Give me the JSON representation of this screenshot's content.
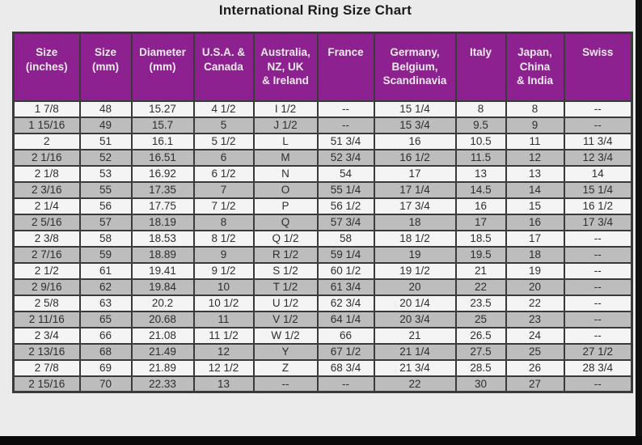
{
  "title": "International Ring Size Chart",
  "chart_data": {
    "type": "table",
    "title": "International Ring Size Chart",
    "columns": [
      "Size\n(inches)",
      "Size\n(mm)",
      "Diameter\n(mm)",
      "U.S.A. &\nCanada",
      "Australia,\nNZ, UK\n& Ireland",
      "France",
      "Germany,\nBelgium,\nScandinavia",
      "Italy",
      "Japan,\nChina\n& India",
      "Swiss"
    ],
    "rows": [
      [
        "1 7/8",
        "48",
        "15.27",
        "4 1/2",
        "I 1/2",
        "--",
        "15 1/4",
        "8",
        "8",
        "--"
      ],
      [
        "1 15/16",
        "49",
        "15.7",
        "5",
        "J 1/2",
        "--",
        "15 3/4",
        "9.5",
        "9",
        "--"
      ],
      [
        "2",
        "51",
        "16.1",
        "5 1/2",
        "L",
        "51 3/4",
        "16",
        "10.5",
        "11",
        "11 3/4"
      ],
      [
        "2 1/16",
        "52",
        "16.51",
        "6",
        "M",
        "52 3/4",
        "16 1/2",
        "11.5",
        "12",
        "12 3/4"
      ],
      [
        "2 1/8",
        "53",
        "16.92",
        "6 1/2",
        "N",
        "54",
        "17",
        "13",
        "13",
        "14"
      ],
      [
        "2 3/16",
        "55",
        "17.35",
        "7",
        "O",
        "55 1/4",
        "17 1/4",
        "14.5",
        "14",
        "15 1/4"
      ],
      [
        "2 1/4",
        "56",
        "17.75",
        "7 1/2",
        "P",
        "56 1/2",
        "17 3/4",
        "16",
        "15",
        "16 1/2"
      ],
      [
        "2 5/16",
        "57",
        "18.19",
        "8",
        "Q",
        "57 3/4",
        "18",
        "17",
        "16",
        "17 3/4"
      ],
      [
        "2 3/8",
        "58",
        "18.53",
        "8 1/2",
        "Q 1/2",
        "58",
        "18 1/2",
        "18.5",
        "17",
        "--"
      ],
      [
        "2 7/16",
        "59",
        "18.89",
        "9",
        "R 1/2",
        "59 1/4",
        "19",
        "19.5",
        "18",
        "--"
      ],
      [
        "2 1/2",
        "61",
        "19.41",
        "9 1/2",
        "S 1/2",
        "60 1/2",
        "19 1/2",
        "21",
        "19",
        "--"
      ],
      [
        "2 9/16",
        "62",
        "19.84",
        "10",
        "T 1/2",
        "61 3/4",
        "20",
        "22",
        "20",
        "--"
      ],
      [
        "2 5/8",
        "63",
        "20.2",
        "10 1/2",
        "U 1/2",
        "62 3/4",
        "20 1/4",
        "23.5",
        "22",
        "--"
      ],
      [
        "2 11/16",
        "65",
        "20.68",
        "11",
        "V 1/2",
        "64 1/4",
        "20 3/4",
        "25",
        "23",
        "--"
      ],
      [
        "2 3/4",
        "66",
        "21.08",
        "11 1/2",
        "W 1/2",
        "66",
        "21",
        "26.5",
        "24",
        "--"
      ],
      [
        "2 13/16",
        "68",
        "21.49",
        "12",
        "Y",
        "67 1/2",
        "21 1/4",
        "27.5",
        "25",
        "27 1/2"
      ],
      [
        "2 7/8",
        "69",
        "21.89",
        "12 1/2",
        "Z",
        "68 3/4",
        "21 3/4",
        "28.5",
        "26",
        "28 3/4"
      ],
      [
        "2 15/16",
        "70",
        "22.33",
        "13",
        "--",
        "--",
        "22",
        "30",
        "27",
        "--"
      ]
    ]
  },
  "colors": {
    "header_bg": "#8e2190",
    "header_text": "#f3eaf3",
    "row_plain": "#f4f4f4",
    "row_shaded": "#bdbdbd",
    "border": "#3a3a3a",
    "page_bg": "#ebebeb",
    "frame": "#111111"
  }
}
